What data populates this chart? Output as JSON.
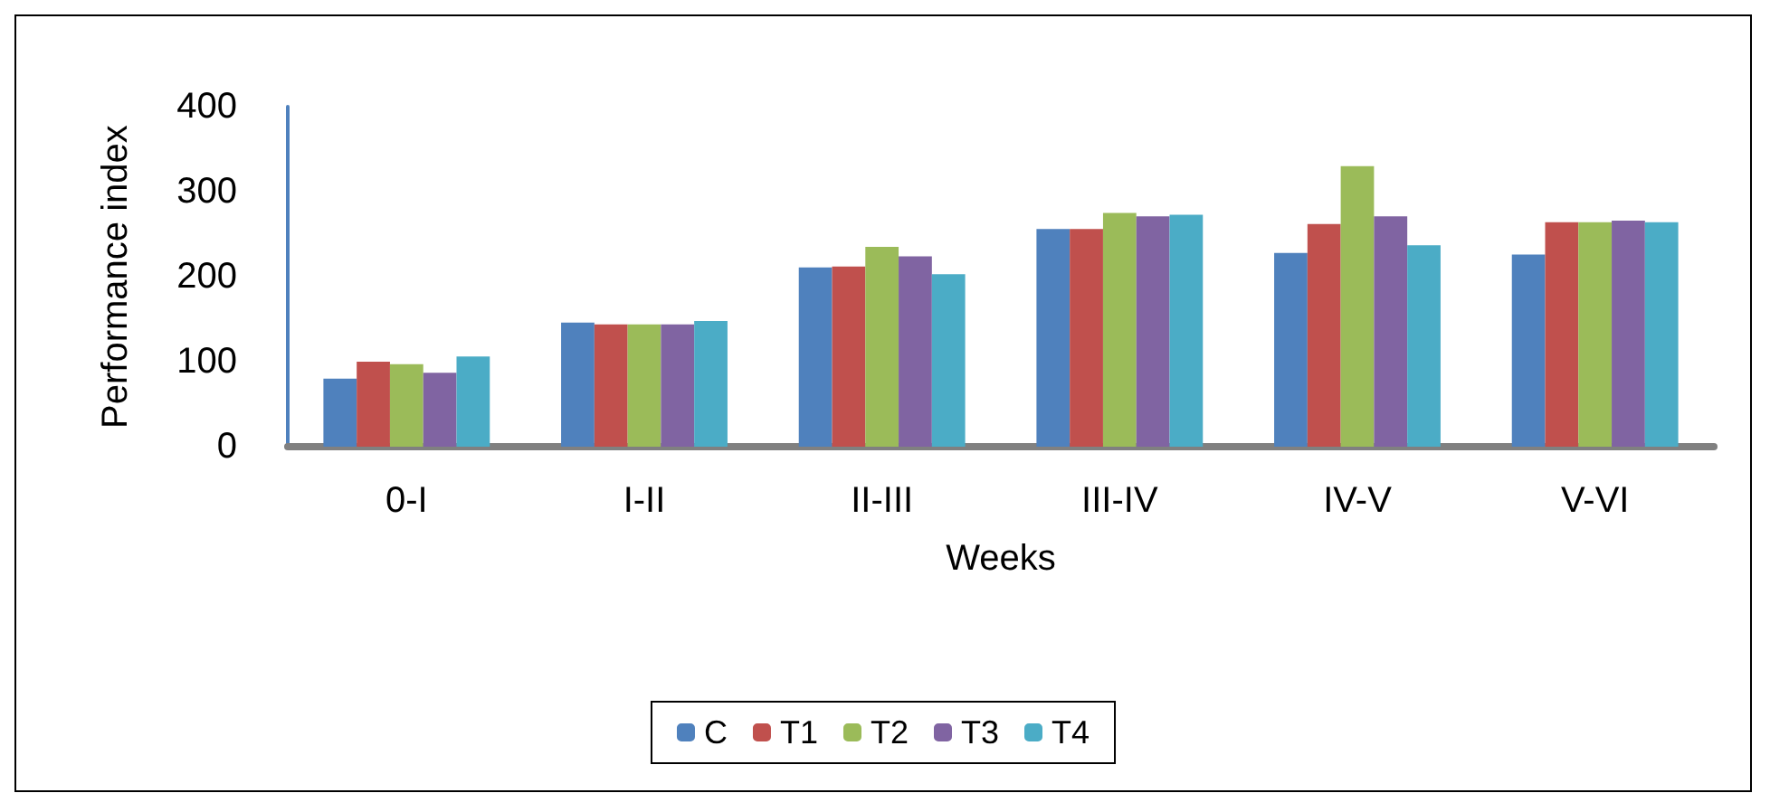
{
  "chart_data": {
    "type": "bar",
    "xlabel": "Weeks",
    "ylabel": "Performance index",
    "categories": [
      "0-I",
      "I-II",
      "II-III",
      "III-IV",
      "IV-V",
      "V-VI"
    ],
    "series": [
      {
        "name": "C",
        "color": "#4f81bd",
        "values": [
          80,
          146,
          211,
          256,
          228,
          226
        ]
      },
      {
        "name": "T1",
        "color": "#c0504d",
        "values": [
          100,
          144,
          212,
          256,
          262,
          264
        ]
      },
      {
        "name": "T2",
        "color": "#9bbb59",
        "values": [
          97,
          144,
          235,
          275,
          330,
          264
        ]
      },
      {
        "name": "T3",
        "color": "#8064a2",
        "values": [
          87,
          144,
          224,
          271,
          271,
          266
        ]
      },
      {
        "name": "T4",
        "color": "#4bacc6",
        "values": [
          106,
          148,
          203,
          273,
          237,
          264
        ]
      }
    ],
    "ylim": [
      0,
      400
    ],
    "yticks": [
      0,
      100,
      200,
      300,
      400
    ],
    "grid": false,
    "legend": "bottom"
  }
}
